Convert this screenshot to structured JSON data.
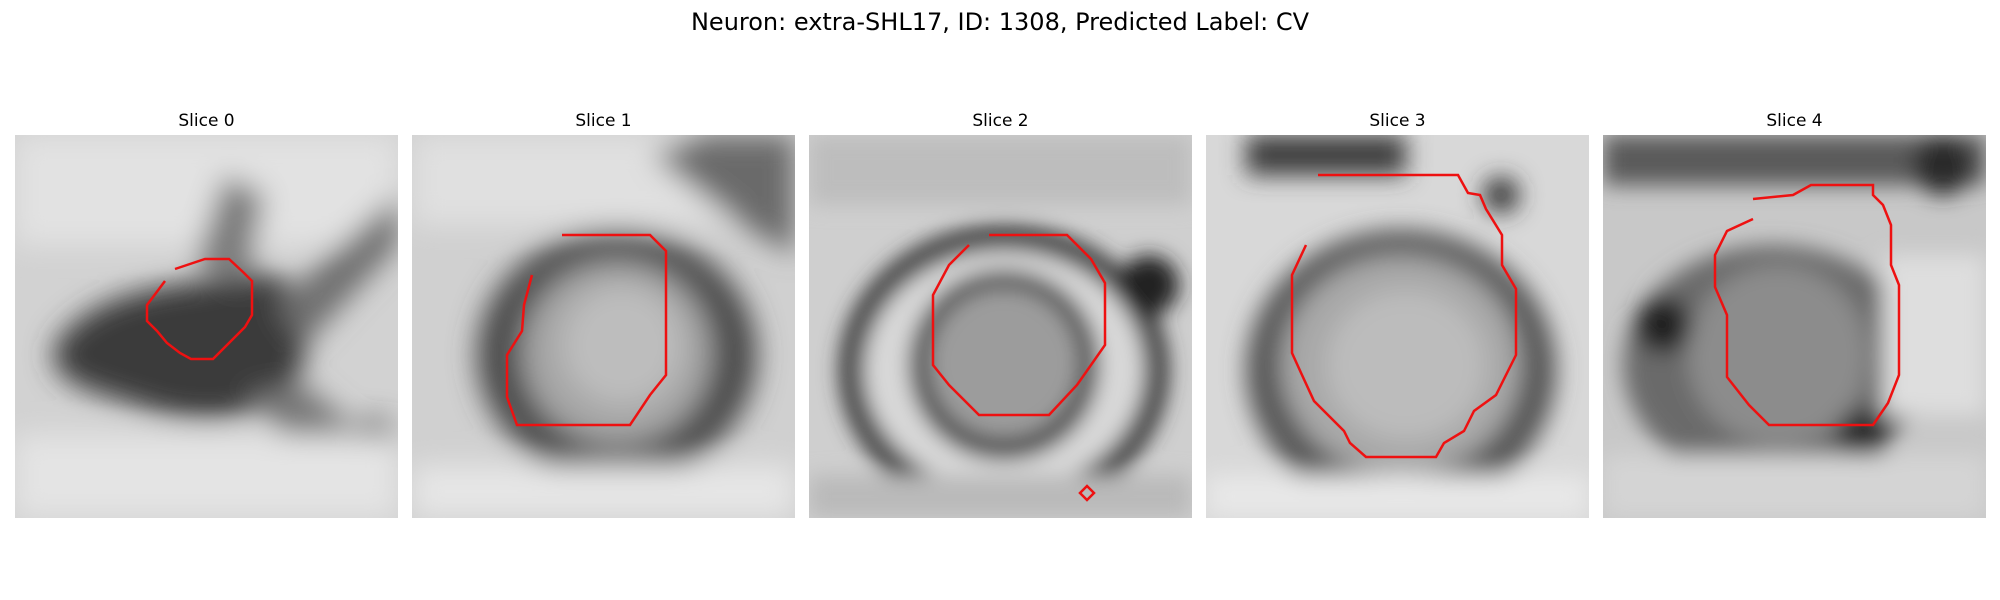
{
  "title": "Neuron: extra-SHL17, ID: 1308, Predicted Label: CV",
  "contour_color": "#ee1111",
  "colormap": "gray",
  "panels": [
    {
      "title": "Slice 0"
    },
    {
      "title": "Slice 1"
    },
    {
      "title": "Slice 2"
    },
    {
      "title": "Slice 3"
    },
    {
      "title": "Slice 4"
    }
  ]
}
